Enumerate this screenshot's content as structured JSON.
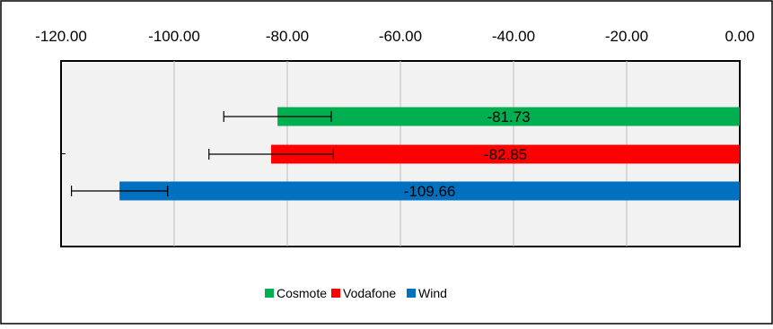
{
  "chart_data": {
    "type": "bar",
    "orientation": "horizontal",
    "xlim": [
      -120,
      0
    ],
    "x_ticks": [
      "-120.00",
      "-100.00",
      "-80.00",
      "-60.00",
      "-40.00",
      "-20.00",
      "0.00"
    ],
    "x_tick_values": [
      -120,
      -100,
      -80,
      -60,
      -40,
      -20,
      0
    ],
    "x_axis_position": "top",
    "grid": true,
    "legend_position": "bottom",
    "title": "",
    "xlabel": "",
    "ylabel": "",
    "series": [
      {
        "name": "Cosmote",
        "value": -81.73,
        "label": "-81.73",
        "error_minus": 9.5,
        "error_plus": 9.5,
        "color": "#00B050"
      },
      {
        "name": "Vodafone",
        "value": -82.85,
        "label": "-82.85",
        "error_minus": 11.0,
        "error_plus": 11.0,
        "color": "#FF0000"
      },
      {
        "name": "Wind",
        "value": -109.66,
        "label": "-109.66",
        "error_minus": 8.5,
        "error_plus": 8.5,
        "color": "#0070C0"
      }
    ]
  }
}
